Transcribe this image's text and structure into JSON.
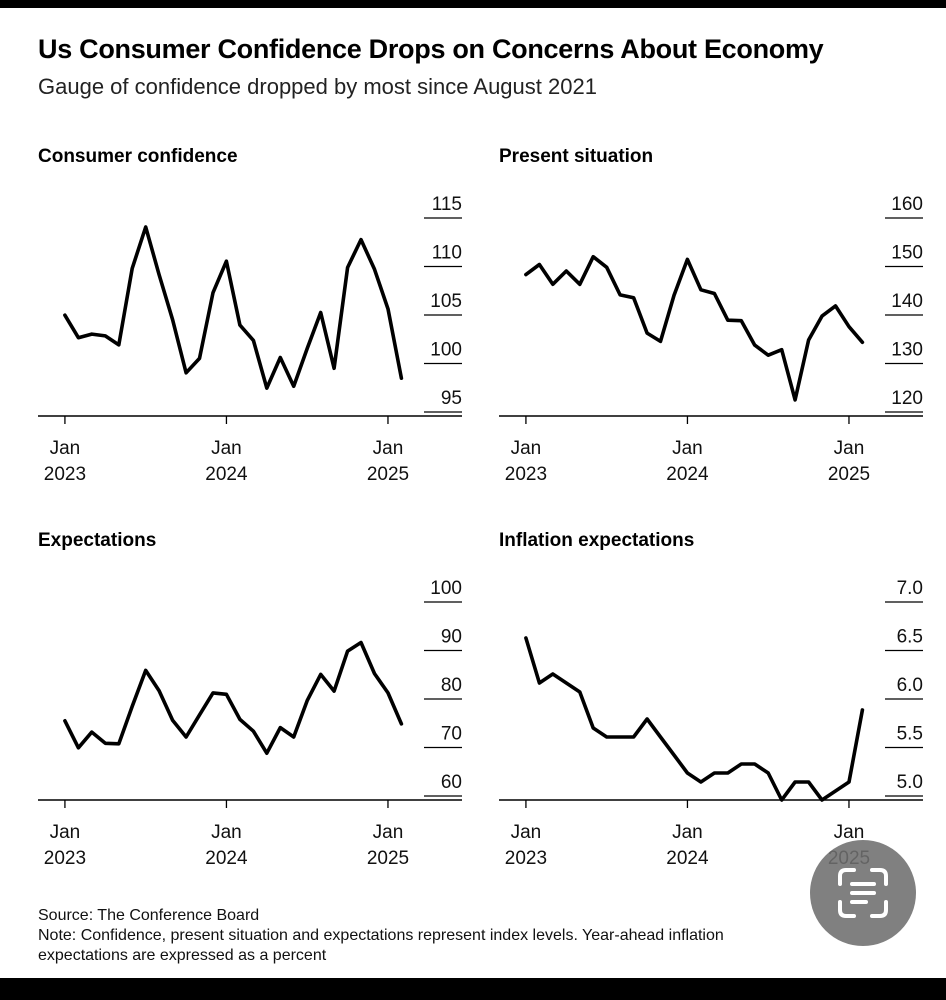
{
  "title": "Us Consumer Confidence Drops on Concerns About Economy",
  "subtitle": "Gauge of confidence dropped by most since August 2021",
  "footer": {
    "source": "Source: The Conference Board",
    "note_line1": "Note: Confidence, present situation and expectations represent index levels. Year-ahead inflation",
    "note_line2": "expectations are expressed as a percent"
  },
  "colors": {
    "line": "#000000",
    "background": "#ffffff",
    "frame": "#000000"
  },
  "chart_data": [
    {
      "type": "line",
      "title": "Consumer confidence",
      "x_start": 2023,
      "x_ticks": [
        {
          "t": 0,
          "month": "Jan",
          "year": "2023"
        },
        {
          "t": 12,
          "month": "Jan",
          "year": "2024"
        },
        {
          "t": 24,
          "month": "Jan",
          "year": "2025"
        }
      ],
      "xlim": [
        -2,
        29.5
      ],
      "y_ticks": [
        "115",
        "110",
        "105",
        "100",
        "95"
      ],
      "ylim": [
        93,
        115
      ],
      "series": [
        {
          "name": "Consumer confidence",
          "values": [
            104.2,
            101.7,
            102.1,
            101.9,
            100.9,
            109.4,
            114.0,
            108.7,
            103.7,
            97.8,
            99.4,
            106.7,
            110.2,
            103.1,
            101.4,
            96.1,
            99.5,
            96.3,
            100.5,
            104.5,
            98.3,
            109.5,
            112.6,
            109.3,
            104.9,
            97.2
          ]
        }
      ]
    },
    {
      "type": "line",
      "title": "Present situation",
      "x_start": 2023,
      "x_ticks": [
        {
          "t": 0,
          "month": "Jan",
          "year": "2023"
        },
        {
          "t": 12,
          "month": "Jan",
          "year": "2024"
        },
        {
          "t": 24,
          "month": "Jan",
          "year": "2025"
        }
      ],
      "xlim": [
        -2,
        29.5
      ],
      "y_ticks": [
        "160",
        "150",
        "140",
        "130",
        "120"
      ],
      "ylim": [
        117,
        160
      ],
      "series": [
        {
          "name": "Present situation",
          "values": [
            147.7,
            149.9,
            145.6,
            148.5,
            145.6,
            151.6,
            149.3,
            143.3,
            142.7,
            135.0,
            133.2,
            143.2,
            151.0,
            144.4,
            143.6,
            137.8,
            137.7,
            132.4,
            130.2,
            131.4,
            120.5,
            133.5,
            138.7,
            140.9,
            136.4,
            133.0
          ]
        }
      ]
    },
    {
      "type": "line",
      "title": "Expectations",
      "x_start": 2023,
      "x_ticks": [
        {
          "t": 0,
          "month": "Jan",
          "year": "2023"
        },
        {
          "t": 12,
          "month": "Jan",
          "year": "2024"
        },
        {
          "t": 24,
          "month": "Jan",
          "year": "2025"
        }
      ],
      "xlim": [
        -2,
        29.5
      ],
      "y_ticks": [
        "100",
        "90",
        "80",
        "70",
        "60"
      ],
      "ylim": [
        56,
        100
      ],
      "series": [
        {
          "name": "Expectations",
          "values": [
            73.6,
            67.6,
            71.1,
            68.6,
            68.5,
            76.8,
            84.8,
            80.3,
            73.7,
            70.0,
            74.9,
            79.8,
            79.5,
            73.9,
            71.3,
            66.4,
            72.1,
            70.0,
            78.1,
            83.9,
            80.2,
            89.1,
            91.0,
            84.1,
            79.8,
            72.9
          ]
        }
      ]
    },
    {
      "type": "line",
      "title": "Inflation expectations",
      "x_start": 2023,
      "x_ticks": [
        {
          "t": 0,
          "month": "Jan",
          "year": "2023"
        },
        {
          "t": 12,
          "month": "Jan",
          "year": "2024"
        },
        {
          "t": 24,
          "month": "Jan",
          "year": "2025"
        }
      ],
      "xlim": [
        -2,
        29.5
      ],
      "y_ticks": [
        "7.0",
        "6.5",
        "6.0",
        "5.5",
        "5.0"
      ],
      "ylim": [
        4.8,
        7.0
      ],
      "series": [
        {
          "name": "Inflation expectations",
          "values": [
            6.6,
            6.1,
            6.2,
            6.1,
            6.0,
            5.6,
            5.5,
            5.5,
            5.5,
            5.7,
            5.5,
            5.3,
            5.1,
            5.0,
            5.1,
            5.1,
            5.2,
            5.2,
            5.1,
            4.8,
            5.0,
            5.0,
            4.8,
            4.9,
            5.0,
            5.8
          ]
        }
      ]
    }
  ]
}
